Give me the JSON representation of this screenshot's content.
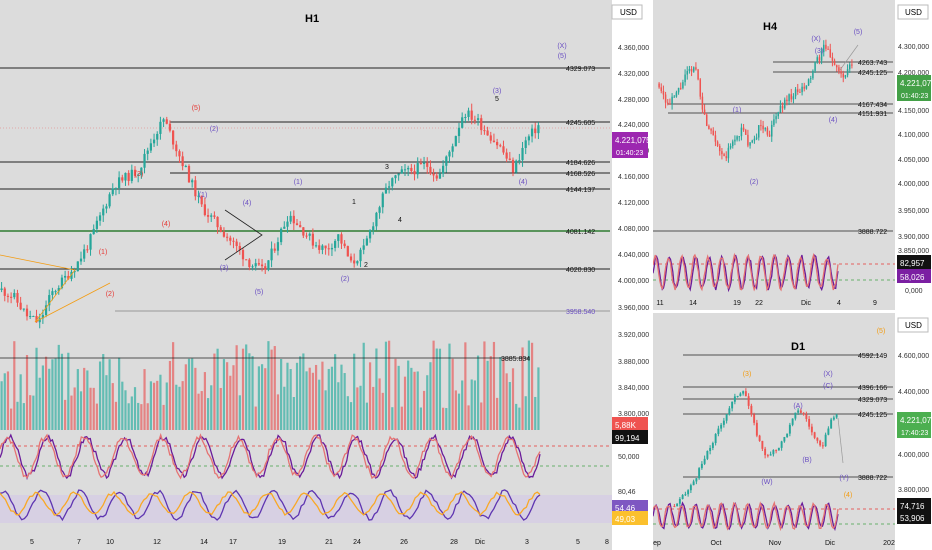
{
  "colors": {
    "bull": "#26a69a",
    "bear": "#ef5350",
    "price_tag": "#9c27b0",
    "price_tag_d1": "#4caf50",
    "wave": "#6a4fc2",
    "wave_red": "#e53935",
    "wave_orange": "#f39c12",
    "grid_text": "#333333"
  },
  "h1": {
    "title": "H1",
    "currency": "USD",
    "price_ticks": [
      "4.360,000",
      "4.320,000",
      "4.280,000",
      "4.240,000",
      "4.200,000",
      "4.160,000",
      "4.120,000",
      "4.080,000",
      "4.040,000",
      "4.000,000",
      "3.960,000",
      "3.920,000",
      "3.880,000",
      "3.840,000",
      "3.800,000"
    ],
    "levels": [
      {
        "label": "4329.073",
        "value": 4329.073
      },
      {
        "label": "4245.605",
        "value": 4245.605
      },
      {
        "label": "4184.626",
        "value": 4184.626
      },
      {
        "label": "4168.526",
        "value": 4168.526
      },
      {
        "label": "4144.137",
        "value": 4144.137
      },
      {
        "label": "4081.142",
        "value": 4081.142
      },
      {
        "label": "4020.830",
        "value": 4020.83
      },
      {
        "label": "3958.540",
        "value": 3958.54
      }
    ],
    "last_price": "4.221,075",
    "countdown": "01:40:23",
    "volume_label": "3885.834",
    "volume_value": "5,88K",
    "stoch_value": "99,194",
    "stoch_tick": "50,000",
    "rsi_ticks": [
      "80,46"
    ],
    "rsi_values": [
      "54,46",
      "49,03"
    ],
    "x_labels": [
      "5",
      "7",
      "10",
      "12",
      "14",
      "17",
      "19",
      "21",
      "24",
      "26",
      "28",
      "Dic",
      "3",
      "5",
      "8"
    ],
    "waves": [
      {
        "t": "(X)",
        "c": "wave"
      },
      {
        "t": "(5)",
        "c": "wave"
      },
      {
        "t": "(3)",
        "c": "wave"
      },
      {
        "t": "5",
        "c": "black"
      },
      {
        "t": "(5)",
        "c": "wave_red"
      },
      {
        "t": "(2)",
        "c": "wave"
      },
      {
        "t": "(3)",
        "c": "wave_red"
      },
      {
        "t": "(1)",
        "c": "wave"
      },
      {
        "t": "3",
        "c": "black"
      },
      {
        "t": "(4)",
        "c": "wave"
      },
      {
        "t": "(1)",
        "c": "wave"
      },
      {
        "t": "1",
        "c": "black"
      },
      {
        "t": "4",
        "c": "black"
      },
      {
        "t": "(4)",
        "c": "wave_red"
      },
      {
        "t": "(1)",
        "c": "wave_red"
      },
      {
        "t": "(3)",
        "c": "wave"
      },
      {
        "t": "(2)",
        "c": "wave_red"
      },
      {
        "t": "(5)",
        "c": "wave"
      },
      {
        "t": "(2)",
        "c": "wave"
      },
      {
        "t": "2",
        "c": "black"
      },
      {
        "t": "(4)",
        "c": "wave"
      }
    ]
  },
  "h4": {
    "title": "H4",
    "currency": "USD",
    "price_ticks": [
      "4.300,000",
      "4.200,000",
      "4.150,000",
      "4.100,000",
      "4.050,000",
      "4.000,000",
      "3.950,000",
      "3.900,000",
      "3.850,000"
    ],
    "levels": [
      {
        "label": "4263.743",
        "value": 4263.743
      },
      {
        "label": "4245.125",
        "value": 4245.125
      },
      {
        "label": "4167.434",
        "value": 4167.434
      },
      {
        "label": "4151.931",
        "value": 4151.931
      },
      {
        "label": "3888.722",
        "value": 3888.722
      }
    ],
    "last_price": "4.221,075",
    "countdown": "01:40:23",
    "stoch_values": [
      "82,957",
      "58,026"
    ],
    "stoch_tick": "0,000",
    "x_labels": [
      "11",
      "14",
      "19",
      "22",
      "Dic",
      "4",
      "9"
    ],
    "waves": [
      {
        "t": "(5)",
        "c": "wave"
      },
      {
        "t": "(X)",
        "c": "wave"
      },
      {
        "t": "(3)",
        "c": "wave"
      },
      {
        "t": "(1)",
        "c": "wave"
      },
      {
        "t": "(4)",
        "c": "wave"
      },
      {
        "t": "(2)",
        "c": "wave"
      }
    ]
  },
  "d1": {
    "title": "D1",
    "currency": "USD",
    "price_ticks": [
      "4.600,000",
      "4.400,000",
      "4.000,000",
      "3.800,000"
    ],
    "levels": [
      {
        "label": "4592.149",
        "value": 4592.149
      },
      {
        "label": "4396.166",
        "value": 4396.166
      },
      {
        "label": "4329.073",
        "value": 4329.073
      },
      {
        "label": "4245.125",
        "value": 4245.125
      },
      {
        "label": "3888.722",
        "value": 3888.722
      }
    ],
    "last_price": "4.221,075",
    "countdown": "17:40:23",
    "stoch_values": [
      "74,716",
      "53,906"
    ],
    "x_labels": [
      "ep",
      "Oct",
      "Nov",
      "Dic",
      "202"
    ],
    "waves": [
      {
        "t": "(5)",
        "c": "wave_orange"
      },
      {
        "t": "(3)",
        "c": "wave_orange"
      },
      {
        "t": "(X)",
        "c": "wave"
      },
      {
        "t": "(C)",
        "c": "wave"
      },
      {
        "t": "(A)",
        "c": "wave"
      },
      {
        "t": "(B)",
        "c": "wave"
      },
      {
        "t": "(W)",
        "c": "wave"
      },
      {
        "t": "(Y)",
        "c": "wave"
      },
      {
        "t": "(4)",
        "c": "wave_orange"
      }
    ]
  },
  "chart_data": [
    {
      "type": "candlestick",
      "timeframe": "H1",
      "title": "H1",
      "currency": "USD",
      "ylim": [
        3940,
        4380
      ],
      "x": [
        "5",
        "7",
        "10",
        "12",
        "14",
        "17",
        "19",
        "21",
        "24",
        "26",
        "28",
        "Dic",
        "3",
        "5",
        "8"
      ],
      "horizontal_levels": [
        4329.073,
        4245.605,
        4184.626,
        4168.526,
        4144.137,
        4081.142,
        4020.83,
        3958.54
      ],
      "close_path": [
        3995,
        3985,
        3960,
        3950,
        3990,
        4010,
        4030,
        4060,
        4100,
        4140,
        4150,
        4160,
        4200,
        4230,
        4190,
        4150,
        4110,
        4090,
        4070,
        4050,
        4030,
        4020,
        4060,
        4100,
        4080,
        4060,
        4050,
        4070,
        4030,
        4050,
        4100,
        4140,
        4155,
        4160,
        4168,
        4150,
        4190,
        4240,
        4230,
        4210,
        4190,
        4160,
        4200,
        4221
      ],
      "last": 4221.075
    },
    {
      "type": "candlestick",
      "timeframe": "H4",
      "title": "H4",
      "currency": "USD",
      "ylim": [
        3860,
        4330
      ],
      "x": [
        "11",
        "14",
        "19",
        "22",
        "Dic",
        "4",
        "9"
      ],
      "horizontal_levels": [
        4263.743,
        4245.125,
        4167.434,
        4151.931,
        3888.722
      ],
      "close_path": [
        4180,
        4130,
        4160,
        4200,
        4215,
        4100,
        4070,
        4010,
        4050,
        4080,
        4040,
        4090,
        4070,
        4120,
        4150,
        4160,
        4170,
        4220,
        4260,
        4230,
        4190,
        4221
      ],
      "last": 4221.075
    },
    {
      "type": "candlestick",
      "timeframe": "D1",
      "title": "D1",
      "currency": "USD",
      "ylim": [
        3700,
        4720
      ],
      "x": [
        "ep",
        "Oct",
        "Nov",
        "Dic",
        "202"
      ],
      "horizontal_levels": [
        4592.149,
        4396.166,
        4329.073,
        4245.125,
        3888.722
      ],
      "close_path": [
        3650,
        3700,
        3760,
        3850,
        3950,
        4050,
        4150,
        4250,
        4330,
        4380,
        4200,
        4050,
        3950,
        3990,
        4050,
        4150,
        4250,
        4200,
        4080,
        4000,
        4150,
        4221
      ],
      "last": 4221.075
    }
  ]
}
